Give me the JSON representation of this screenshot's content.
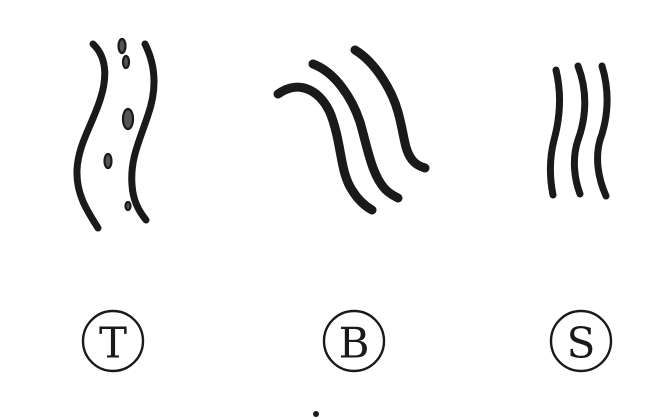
{
  "figures": [
    {
      "id": "T",
      "label": "T"
    },
    {
      "id": "B",
      "label": "B"
    },
    {
      "id": "S",
      "label": "S"
    }
  ],
  "colors": {
    "line": "#1a1a1a",
    "fill": "#555555",
    "background": "#ffffff"
  }
}
